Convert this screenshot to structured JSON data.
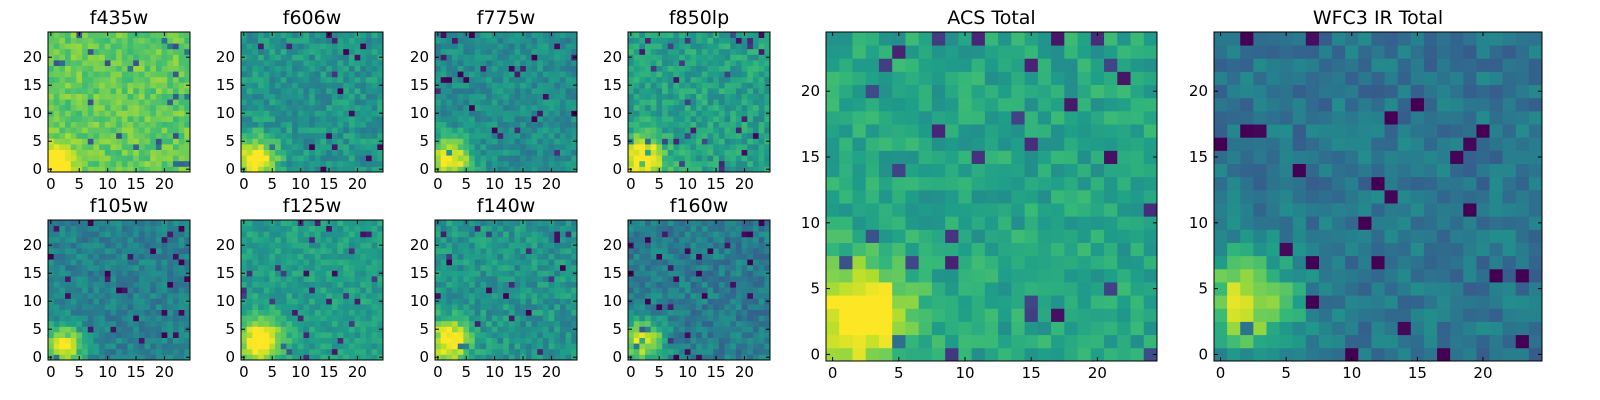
{
  "chart_data": [
    {
      "type": "heatmap",
      "title": "f435w",
      "colormap": "viridis",
      "grid": false,
      "xlim": [
        0,
        24
      ],
      "ylim": [
        0,
        24
      ],
      "xticks": [
        0,
        5,
        10,
        15,
        20
      ],
      "yticks": [
        0,
        5,
        10,
        15,
        20
      ],
      "hotspot": [
        0,
        0
      ],
      "level_range": [
        0.55,
        0.9
      ]
    },
    {
      "type": "heatmap",
      "title": "f606w",
      "colormap": "viridis",
      "grid": false,
      "xlim": [
        0,
        24
      ],
      "ylim": [
        0,
        24
      ],
      "xticks": [
        0,
        5,
        10,
        15,
        20
      ],
      "yticks": [
        0,
        5,
        10,
        15,
        20
      ],
      "hotspot": [
        2,
        2
      ],
      "level_range": [
        0.25,
        0.7
      ]
    },
    {
      "type": "heatmap",
      "title": "f775w",
      "colormap": "viridis",
      "grid": false,
      "xlim": [
        0,
        24
      ],
      "ylim": [
        0,
        24
      ],
      "xticks": [
        0,
        5,
        10,
        15,
        20
      ],
      "yticks": [
        0,
        5,
        10,
        15,
        20
      ],
      "hotspot": [
        2,
        2
      ],
      "level_range": [
        0.25,
        0.65
      ]
    },
    {
      "type": "heatmap",
      "title": "f850lp",
      "colormap": "viridis",
      "grid": false,
      "xlim": [
        0,
        24
      ],
      "ylim": [
        0,
        24
      ],
      "xticks": [
        0,
        5,
        10,
        15,
        20
      ],
      "yticks": [
        0,
        5,
        10,
        15,
        20
      ],
      "hotspot": [
        2,
        2
      ],
      "level_range": [
        0.3,
        0.75
      ]
    },
    {
      "type": "heatmap",
      "title": "f105w",
      "colormap": "viridis",
      "grid": false,
      "xlim": [
        0,
        24
      ],
      "ylim": [
        0,
        24
      ],
      "xticks": [
        0,
        5,
        10,
        15,
        20
      ],
      "yticks": [
        0,
        5,
        10,
        15,
        20
      ],
      "hotspot": [
        2,
        2
      ],
      "level_range": [
        0.2,
        0.6
      ]
    },
    {
      "type": "heatmap",
      "title": "f125w",
      "colormap": "viridis",
      "grid": false,
      "xlim": [
        0,
        24
      ],
      "ylim": [
        0,
        24
      ],
      "xticks": [
        0,
        5,
        10,
        15,
        20
      ],
      "yticks": [
        0,
        5,
        10,
        15,
        20
      ],
      "hotspot": [
        3,
        3
      ],
      "level_range": [
        0.35,
        0.7
      ]
    },
    {
      "type": "heatmap",
      "title": "f140w",
      "colormap": "viridis",
      "grid": false,
      "xlim": [
        0,
        24
      ],
      "ylim": [
        0,
        24
      ],
      "xticks": [
        0,
        5,
        10,
        15,
        20
      ],
      "yticks": [
        0,
        5,
        10,
        15,
        20
      ],
      "hotspot": [
        2,
        3
      ],
      "level_range": [
        0.25,
        0.7
      ]
    },
    {
      "type": "heatmap",
      "title": "f160w",
      "colormap": "viridis",
      "grid": false,
      "xlim": [
        0,
        24
      ],
      "ylim": [
        0,
        24
      ],
      "xticks": [
        0,
        5,
        10,
        15,
        20
      ],
      "yticks": [
        0,
        5,
        10,
        15,
        20
      ],
      "hotspot": [
        2,
        3
      ],
      "level_range": [
        0.15,
        0.6
      ]
    },
    {
      "type": "heatmap",
      "title": "ACS Total",
      "colormap": "viridis",
      "grid": false,
      "xlim": [
        0,
        24
      ],
      "ylim": [
        0,
        24
      ],
      "xticks": [
        0,
        5,
        10,
        15,
        20
      ],
      "yticks": [
        0,
        5,
        10,
        15,
        20
      ],
      "hotspot": [
        2,
        3
      ],
      "level_range": [
        0.35,
        0.75
      ]
    },
    {
      "type": "heatmap",
      "title": "WFC3 IR Total",
      "colormap": "viridis",
      "grid": false,
      "xlim": [
        0,
        24
      ],
      "ylim": [
        0,
        24
      ],
      "xticks": [
        0,
        5,
        10,
        15,
        20
      ],
      "yticks": [
        0,
        5,
        10,
        15,
        20
      ],
      "hotspot": [
        2,
        4
      ],
      "level_range": [
        0.15,
        0.55
      ]
    }
  ]
}
